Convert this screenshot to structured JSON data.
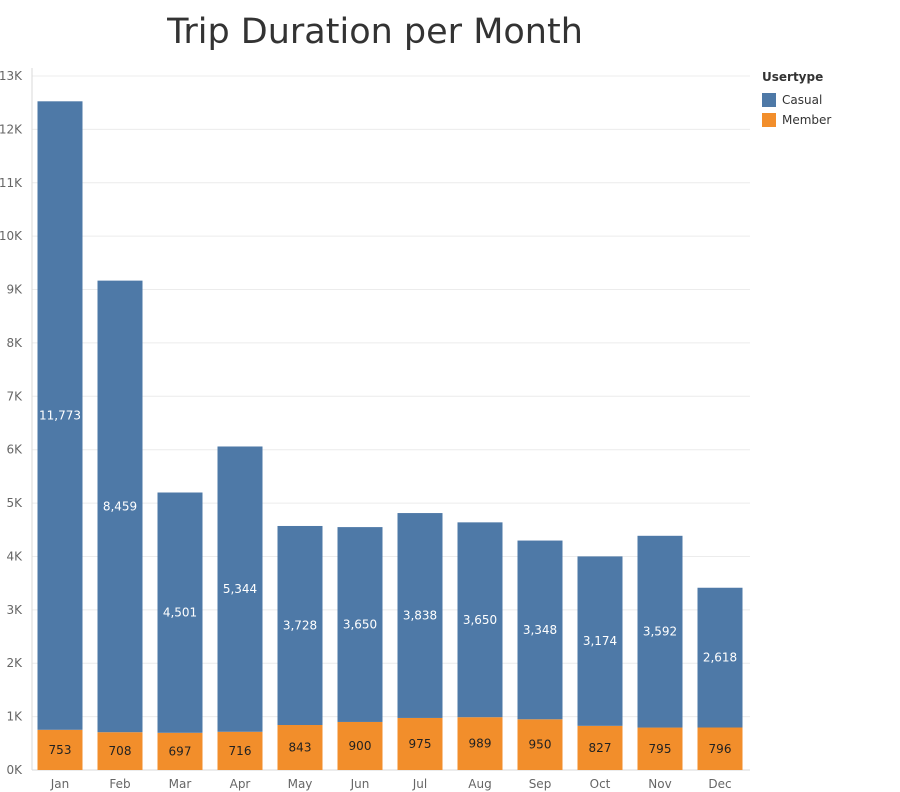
{
  "chart_data": {
    "type": "bar",
    "stacked": true,
    "title": "Trip Duration per Month",
    "categories": [
      "Jan",
      "Feb",
      "Mar",
      "Apr",
      "May",
      "Jun",
      "Jul",
      "Aug",
      "Sep",
      "Oct",
      "Nov",
      "Dec"
    ],
    "series": [
      {
        "name": "Member",
        "color": "#f28e2b",
        "label_color": "#222222",
        "values": [
          753,
          708,
          697,
          716,
          843,
          900,
          975,
          989,
          950,
          827,
          795,
          796
        ]
      },
      {
        "name": "Casual",
        "color": "#4e79a7",
        "label_color": "#ffffff",
        "values": [
          11773,
          8459,
          4501,
          5344,
          3728,
          3650,
          3838,
          3650,
          3348,
          3174,
          3592,
          2618
        ]
      }
    ],
    "ylim": [
      0,
      13000
    ],
    "yticks": [
      0,
      1000,
      2000,
      3000,
      4000,
      5000,
      6000,
      7000,
      8000,
      9000,
      10000,
      11000,
      12000,
      13000
    ],
    "ytick_labels": [
      "0K",
      "1K",
      "2K",
      "3K",
      "4K",
      "5K",
      "6K",
      "7K",
      "8K",
      "9K",
      "10K",
      "11K",
      "12K",
      "13K"
    ],
    "grid": true,
    "legend": {
      "title": "Usertype",
      "placement": "right",
      "entries": [
        {
          "label": "Casual",
          "color": "#4e79a7"
        },
        {
          "label": "Member",
          "color": "#f28e2b"
        }
      ]
    }
  }
}
